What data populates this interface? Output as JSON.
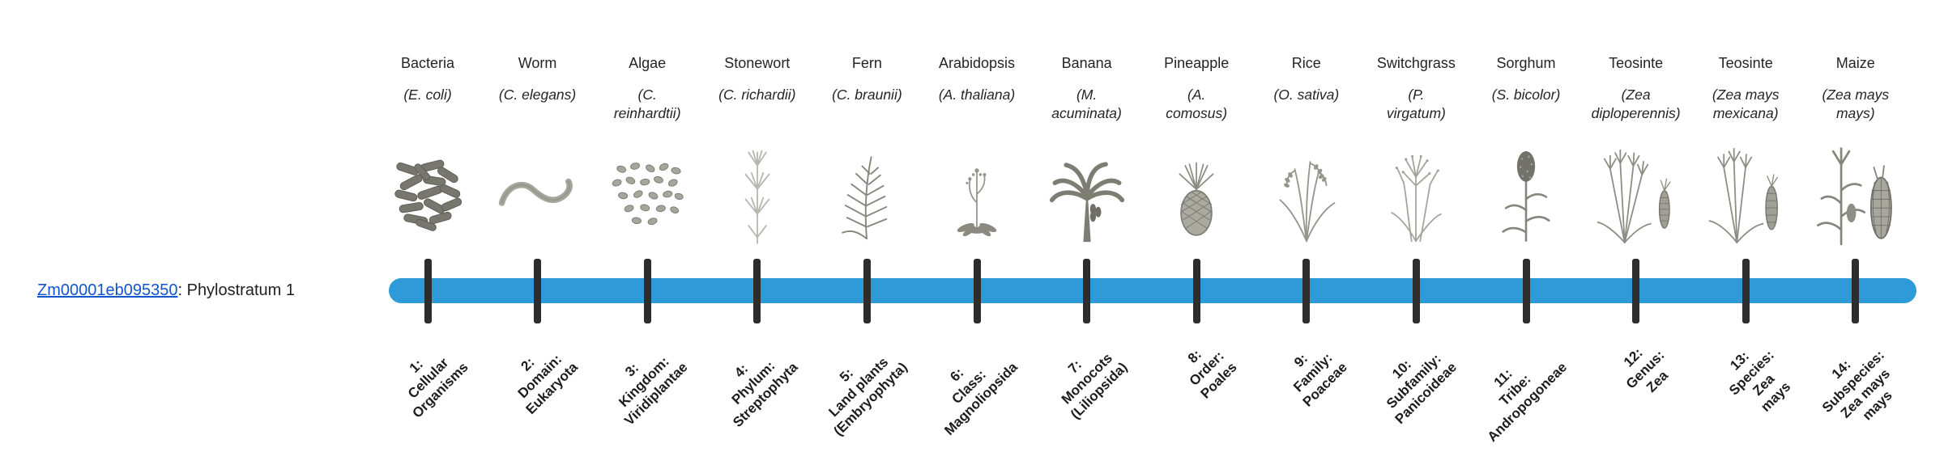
{
  "gene": {
    "id": "Zm00001eb095350",
    "suffix": ": Phylostratum 1"
  },
  "colors": {
    "bar": "#2e9bd8",
    "link": "#1155cc",
    "tick": "#2d2d2d",
    "text": "#212121"
  },
  "taxa": [
    {
      "name": "Bacteria",
      "sci": "(E. coli)",
      "icon": "bacteria",
      "stratum_label": "1:\nCellular\nOrganisms"
    },
    {
      "name": "Worm",
      "sci": "(C. elegans)",
      "icon": "worm",
      "stratum_label": "2:\nDomain:\nEukaryota"
    },
    {
      "name": "Algae",
      "sci": "(C.\nreinhardtii)",
      "icon": "algae",
      "stratum_label": "3:\nKingdom:\nViridiplantae"
    },
    {
      "name": "Stonewort",
      "sci": "(C. richardii)",
      "icon": "stonewort",
      "stratum_label": "4:\nPhylum:\nStreptophyta"
    },
    {
      "name": "Fern",
      "sci": "(C. braunii)",
      "icon": "fern",
      "stratum_label": "5:\nLand plants\n(Embryophyta)"
    },
    {
      "name": "Arabidopsis",
      "sci": "(A. thaliana)",
      "icon": "arabidopsis",
      "stratum_label": "6:\nClass:\nMagnoliopsida"
    },
    {
      "name": "Banana",
      "sci": "(M.\nacuminata)",
      "icon": "banana",
      "stratum_label": "7:\nMonocots\n(Liliopsida)"
    },
    {
      "name": "Pineapple",
      "sci": "(A.\ncomosus)",
      "icon": "pineapple",
      "stratum_label": "8:\nOrder:\nPoales"
    },
    {
      "name": "Rice",
      "sci": "(O. sativa)",
      "icon": "rice",
      "stratum_label": "9:\nFamily:\nPoaceae"
    },
    {
      "name": "Switchgrass",
      "sci": "(P.\nvirgatum)",
      "icon": "switchgrass",
      "stratum_label": "10:\nSubfamily:\nPanicoideae"
    },
    {
      "name": "Sorghum",
      "sci": "(S. bicolor)",
      "icon": "sorghum",
      "stratum_label": "11:\nTribe:\nAndropogoneae"
    },
    {
      "name": "Teosinte",
      "sci": "(Zea\ndiploperennis)",
      "icon": "teosinte_diploperennis",
      "stratum_label": "12:\nGenus:\nZea"
    },
    {
      "name": "Teosinte",
      "sci": "(Zea mays\nmexicana)",
      "icon": "teosinte_mexicana",
      "stratum_label": "13:\nSpecies:\nZea\nmays"
    },
    {
      "name": "Maize",
      "sci": "(Zea mays\nmays)",
      "icon": "maize",
      "stratum_label": "14:\nSubspecies:\nZea mays\nmays"
    }
  ],
  "chart_data": {
    "type": "bar",
    "orientation": "horizontal",
    "title": "",
    "rows": [
      {
        "label": "Zm00001eb095350: Phylostratum 1",
        "phylostratum": 1,
        "span_strata": [
          1,
          14
        ],
        "color": "#2e9bd8"
      }
    ],
    "x_categories": [
      "1: Cellular Organisms",
      "2: Domain: Eukaryota",
      "3: Kingdom: Viridiplantae",
      "4: Phylum: Streptophyta",
      "5: Land plants (Embryophyta)",
      "6: Class: Magnoliopsida",
      "7: Monocots (Liliopsida)",
      "8: Order: Poales",
      "9: Family: Poaceae",
      "10: Subfamily: Panicoideae",
      "11: Tribe: Andropogoneae",
      "12: Genus: Zea",
      "13: Species: Zea mays",
      "14: Subspecies: Zea mays mays"
    ],
    "x_category_organisms": [
      "Bacteria (E. coli)",
      "Worm (C. elegans)",
      "Algae (C. reinhardtii)",
      "Stonewort (C. richardii)",
      "Fern (C. braunii)",
      "Arabidopsis (A. thaliana)",
      "Banana (M. acuminata)",
      "Pineapple (A. comosus)",
      "Rice (O. sativa)",
      "Switchgrass (P. virgatum)",
      "Sorghum (S. bicolor)",
      "Teosinte (Zea diploperennis)",
      "Teosinte (Zea mays mexicana)",
      "Maize (Zea mays mays)"
    ],
    "legend": "none",
    "grid": false
  }
}
